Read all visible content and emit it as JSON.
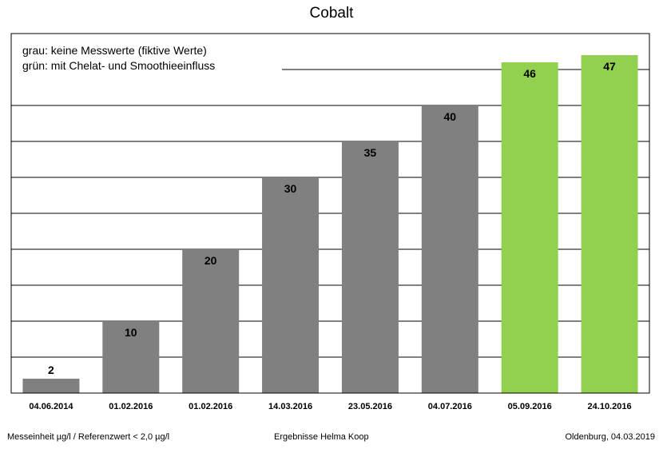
{
  "chart_data": {
    "type": "bar",
    "title": "Cobalt",
    "categories": [
      "04.06.2014",
      "01.02.2016",
      "01.02.2016",
      "14.03.2016",
      "23.05.2016",
      "04.07.2016",
      "05.09.2016",
      "24.10.2016"
    ],
    "values": [
      2,
      10,
      20,
      30,
      35,
      40,
      46,
      47
    ],
    "data_labels": [
      "2",
      "10",
      "20",
      "30",
      "35",
      "40",
      "46",
      "47"
    ],
    "groups": [
      "grau",
      "grau",
      "grau",
      "grau",
      "grau",
      "grau",
      "grün",
      "grün"
    ],
    "ylim": [
      0,
      50
    ],
    "y_gridline_step": 5,
    "y_tick_labels": false,
    "grid": true,
    "legend_placement": "top-left",
    "annotations": [
      "grau: keine Messwerte (fiktive Werte)",
      "grün: mit Chelat- und Smoothieeinfluss"
    ]
  },
  "colors": {
    "grau": "#808080",
    "grün": "#92d050"
  },
  "footer": {
    "left": "Messeinheit µg/l / Referenzwert < 2,0 µg/l",
    "center": "Ergebnisse Helma Koop",
    "right": "Oldenburg, 04.03.2019"
  }
}
